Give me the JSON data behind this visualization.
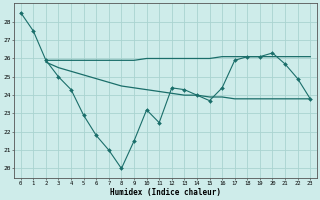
{
  "xlabel": "Humidex (Indice chaleur)",
  "background_color": "#ceecea",
  "grid_color": "#aad4d0",
  "line_color": "#1a6e6a",
  "xlim": [
    -0.5,
    23.5
  ],
  "ylim": [
    19.5,
    29.0
  ],
  "yticks": [
    20,
    21,
    22,
    23,
    24,
    25,
    26,
    27,
    28
  ],
  "xticks": [
    0,
    1,
    2,
    3,
    4,
    5,
    6,
    7,
    8,
    9,
    10,
    11,
    12,
    13,
    14,
    15,
    16,
    17,
    18,
    19,
    20,
    21,
    22,
    23
  ],
  "series1_x": [
    0,
    1,
    2,
    3,
    4,
    5,
    6,
    7,
    8,
    9,
    10,
    11,
    12,
    13,
    14,
    15,
    16,
    17,
    18,
    19,
    20,
    21,
    22,
    23
  ],
  "series1_y": [
    28.5,
    27.5,
    25.9,
    25.0,
    24.3,
    22.9,
    21.8,
    21.0,
    20.0,
    21.5,
    23.2,
    22.5,
    24.4,
    24.3,
    24.0,
    23.7,
    24.4,
    25.9,
    26.1,
    26.1,
    26.3,
    25.7,
    24.9,
    23.8
  ],
  "series2_x": [
    2,
    3,
    4,
    5,
    6,
    7,
    8,
    9,
    10,
    11,
    12,
    13,
    14,
    15,
    16,
    17,
    18,
    19,
    20,
    21,
    22,
    23
  ],
  "series2_y": [
    25.9,
    25.9,
    25.9,
    25.9,
    25.9,
    25.9,
    25.9,
    25.9,
    26.0,
    26.0,
    26.0,
    26.0,
    26.0,
    26.0,
    26.1,
    26.1,
    26.1,
    26.1,
    26.1,
    26.1,
    26.1,
    26.1
  ],
  "series3_x": [
    2,
    3,
    4,
    5,
    6,
    7,
    8,
    9,
    10,
    11,
    12,
    13,
    14,
    15,
    16,
    17,
    18,
    19,
    20,
    21,
    22,
    23
  ],
  "series3_y": [
    25.8,
    25.5,
    25.3,
    25.1,
    24.9,
    24.7,
    24.5,
    24.4,
    24.3,
    24.2,
    24.1,
    24.0,
    24.0,
    23.9,
    23.9,
    23.8,
    23.8,
    23.8,
    23.8,
    23.8,
    23.8,
    23.8
  ]
}
